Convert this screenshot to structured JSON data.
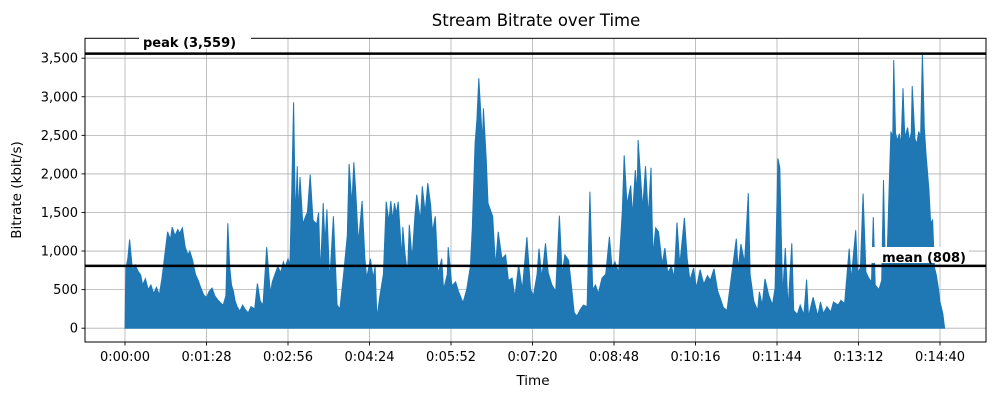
{
  "chart_data": {
    "type": "area",
    "title": "Stream Bitrate over Time",
    "xlabel": "Time",
    "ylabel": "Bitrate (kbit/s)",
    "series_name": "bitrate",
    "series_color": "#1f77b4",
    "grid": true,
    "grid_color": "#b0b0b0",
    "legend": "none",
    "xlim_seconds": [
      -44,
      930
    ],
    "ylim": [
      -178,
      3760
    ],
    "x_unit": "h:mm:ss",
    "y_unit": "kbit/s",
    "x_ticks": [
      {
        "t": 0,
        "label": "0:00:00"
      },
      {
        "t": 88,
        "label": "0:01:28"
      },
      {
        "t": 176,
        "label": "0:02:56"
      },
      {
        "t": 264,
        "label": "0:04:24"
      },
      {
        "t": 352,
        "label": "0:05:52"
      },
      {
        "t": 440,
        "label": "0:07:20"
      },
      {
        "t": 528,
        "label": "0:08:48"
      },
      {
        "t": 616,
        "label": "0:10:16"
      },
      {
        "t": 704,
        "label": "0:11:44"
      },
      {
        "t": 792,
        "label": "0:13:12"
      },
      {
        "t": 880,
        "label": "0:14:40"
      }
    ],
    "y_ticks": [
      {
        "v": 0,
        "label": "0"
      },
      {
        "v": 500,
        "label": "500"
      },
      {
        "v": 1000,
        "label": "1,000"
      },
      {
        "v": 1500,
        "label": "1,500"
      },
      {
        "v": 2000,
        "label": "2,000"
      },
      {
        "v": 2500,
        "label": "2,500"
      },
      {
        "v": 3000,
        "label": "3,000"
      },
      {
        "v": 3500,
        "label": "3,500"
      }
    ],
    "annotations": [
      {
        "name": "peak",
        "label": "peak (3,559)",
        "value": 3559,
        "line_color": "#000000"
      },
      {
        "name": "mean",
        "label": "mean (808)",
        "value": 808,
        "line_color": "#000000"
      }
    ],
    "points": [
      [
        0,
        0
      ],
      [
        1,
        780
      ],
      [
        3,
        900
      ],
      [
        5,
        1150
      ],
      [
        8,
        760
      ],
      [
        11,
        820
      ],
      [
        14,
        740
      ],
      [
        17,
        690
      ],
      [
        19,
        560
      ],
      [
        22,
        640
      ],
      [
        25,
        500
      ],
      [
        28,
        560
      ],
      [
        31,
        450
      ],
      [
        34,
        530
      ],
      [
        37,
        430
      ],
      [
        40,
        650
      ],
      [
        43,
        950
      ],
      [
        46,
        1250
      ],
      [
        49,
        1150
      ],
      [
        51,
        1310
      ],
      [
        54,
        1200
      ],
      [
        57,
        1280
      ],
      [
        59,
        1230
      ],
      [
        62,
        1300
      ],
      [
        65,
        1050
      ],
      [
        68,
        950
      ],
      [
        70,
        1000
      ],
      [
        73,
        880
      ],
      [
        76,
        700
      ],
      [
        79,
        620
      ],
      [
        82,
        520
      ],
      [
        85,
        430
      ],
      [
        88,
        400
      ],
      [
        91,
        480
      ],
      [
        94,
        520
      ],
      [
        97,
        420
      ],
      [
        100,
        370
      ],
      [
        103,
        330
      ],
      [
        106,
        300
      ],
      [
        109,
        420
      ],
      [
        111,
        1360
      ],
      [
        113,
        800
      ],
      [
        115,
        560
      ],
      [
        117,
        480
      ],
      [
        119,
        350
      ],
      [
        121,
        280
      ],
      [
        124,
        220
      ],
      [
        127,
        300
      ],
      [
        130,
        240
      ],
      [
        133,
        200
      ],
      [
        136,
        280
      ],
      [
        140,
        250
      ],
      [
        143,
        580
      ],
      [
        146,
        350
      ],
      [
        149,
        300
      ],
      [
        153,
        1050
      ],
      [
        157,
        450
      ],
      [
        159,
        600
      ],
      [
        165,
        800
      ],
      [
        168,
        720
      ],
      [
        171,
        860
      ],
      [
        173,
        790
      ],
      [
        176,
        900
      ],
      [
        178,
        820
      ],
      [
        180,
        1750
      ],
      [
        182,
        2930
      ],
      [
        184,
        1400
      ],
      [
        186,
        2100
      ],
      [
        187,
        1500
      ],
      [
        189,
        1960
      ],
      [
        192,
        1350
      ],
      [
        195,
        1450
      ],
      [
        197,
        1500
      ],
      [
        200,
        1990
      ],
      [
        203,
        1400
      ],
      [
        207,
        1350
      ],
      [
        209,
        1500
      ],
      [
        211,
        700
      ],
      [
        214,
        1620
      ],
      [
        216,
        1100
      ],
      [
        218,
        1540
      ],
      [
        221,
        600
      ],
      [
        225,
        1450
      ],
      [
        229,
        300
      ],
      [
        232,
        250
      ],
      [
        236,
        700
      ],
      [
        240,
        1200
      ],
      [
        242,
        2130
      ],
      [
        245,
        1600
      ],
      [
        247,
        2150
      ],
      [
        249,
        1800
      ],
      [
        252,
        1100
      ],
      [
        256,
        1650
      ],
      [
        259,
        900
      ],
      [
        261,
        650
      ],
      [
        265,
        900
      ],
      [
        268,
        650
      ],
      [
        270,
        800
      ],
      [
        272,
        130
      ],
      [
        275,
        400
      ],
      [
        279,
        700
      ],
      [
        282,
        1640
      ],
      [
        285,
        1380
      ],
      [
        287,
        1650
      ],
      [
        289,
        1400
      ],
      [
        291,
        1620
      ],
      [
        293,
        1480
      ],
      [
        295,
        1640
      ],
      [
        299,
        900
      ],
      [
        300,
        1310
      ],
      [
        302,
        1000
      ],
      [
        305,
        700
      ],
      [
        307,
        1340
      ],
      [
        310,
        900
      ],
      [
        313,
        1450
      ],
      [
        315,
        1730
      ],
      [
        319,
        1400
      ],
      [
        321,
        1840
      ],
      [
        324,
        1500
      ],
      [
        327,
        1880
      ],
      [
        330,
        1600
      ],
      [
        332,
        1250
      ],
      [
        335,
        1450
      ],
      [
        338,
        700
      ],
      [
        342,
        900
      ],
      [
        344,
        500
      ],
      [
        348,
        700
      ],
      [
        349,
        1050
      ],
      [
        353,
        550
      ],
      [
        357,
        600
      ],
      [
        360,
        480
      ],
      [
        365,
        330
      ],
      [
        369,
        500
      ],
      [
        373,
        800
      ],
      [
        375,
        1300
      ],
      [
        378,
        2400
      ],
      [
        380,
        2700
      ],
      [
        382,
        3240
      ],
      [
        386,
        2400
      ],
      [
        387,
        2850
      ],
      [
        390,
        2200
      ],
      [
        392,
        1620
      ],
      [
        397,
        1450
      ],
      [
        400,
        800
      ],
      [
        403,
        1250
      ],
      [
        407,
        900
      ],
      [
        411,
        950
      ],
      [
        414,
        620
      ],
      [
        418,
        650
      ],
      [
        421,
        400
      ],
      [
        425,
        820
      ],
      [
        429,
        500
      ],
      [
        434,
        1180
      ],
      [
        438,
        500
      ],
      [
        441,
        420
      ],
      [
        445,
        700
      ],
      [
        447,
        1030
      ],
      [
        450,
        650
      ],
      [
        454,
        1100
      ],
      [
        457,
        720
      ],
      [
        461,
        560
      ],
      [
        465,
        480
      ],
      [
        469,
        1460
      ],
      [
        472,
        700
      ],
      [
        475,
        950
      ],
      [
        479,
        880
      ],
      [
        482,
        550
      ],
      [
        485,
        200
      ],
      [
        488,
        160
      ],
      [
        492,
        250
      ],
      [
        495,
        300
      ],
      [
        499,
        280
      ],
      [
        502,
        1770
      ],
      [
        505,
        500
      ],
      [
        508,
        560
      ],
      [
        511,
        450
      ],
      [
        515,
        650
      ],
      [
        519,
        700
      ],
      [
        523,
        1185
      ],
      [
        526,
        780
      ],
      [
        529,
        860
      ],
      [
        533,
        720
      ],
      [
        537,
        1510
      ],
      [
        539,
        2240
      ],
      [
        542,
        1600
      ],
      [
        546,
        1850
      ],
      [
        548,
        1450
      ],
      [
        551,
        2050
      ],
      [
        553,
        1750
      ],
      [
        554,
        2440
      ],
      [
        559,
        1550
      ],
      [
        562,
        2100
      ],
      [
        565,
        1450
      ],
      [
        568,
        2080
      ],
      [
        570,
        950
      ],
      [
        573,
        1300
      ],
      [
        576,
        1250
      ],
      [
        580,
        830
      ],
      [
        583,
        1040
      ],
      [
        586,
        720
      ],
      [
        590,
        800
      ],
      [
        593,
        660
      ],
      [
        596,
        1370
      ],
      [
        599,
        820
      ],
      [
        604,
        1430
      ],
      [
        607,
        900
      ],
      [
        610,
        620
      ],
      [
        614,
        780
      ],
      [
        617,
        520
      ],
      [
        621,
        760
      ],
      [
        625,
        570
      ],
      [
        629,
        680
      ],
      [
        632,
        620
      ],
      [
        636,
        770
      ],
      [
        640,
        480
      ],
      [
        643,
        380
      ],
      [
        646,
        270
      ],
      [
        650,
        230
      ],
      [
        655,
        690
      ],
      [
        660,
        1160
      ],
      [
        662,
        760
      ],
      [
        665,
        1090
      ],
      [
        669,
        850
      ],
      [
        673,
        1750
      ],
      [
        675,
        700
      ],
      [
        679,
        350
      ],
      [
        683,
        230
      ],
      [
        685,
        470
      ],
      [
        688,
        300
      ],
      [
        691,
        640
      ],
      [
        695,
        430
      ],
      [
        699,
        300
      ],
      [
        702,
        520
      ],
      [
        705,
        2200
      ],
      [
        707,
        2080
      ],
      [
        710,
        420
      ],
      [
        713,
        1040
      ],
      [
        716,
        260
      ],
      [
        720,
        1100
      ],
      [
        722,
        230
      ],
      [
        726,
        180
      ],
      [
        729,
        300
      ],
      [
        733,
        170
      ],
      [
        736,
        630
      ],
      [
        738,
        150
      ],
      [
        743,
        400
      ],
      [
        748,
        160
      ],
      [
        751,
        340
      ],
      [
        754,
        190
      ],
      [
        758,
        280
      ],
      [
        762,
        210
      ],
      [
        765,
        340
      ],
      [
        770,
        300
      ],
      [
        773,
        360
      ],
      [
        777,
        320
      ],
      [
        782,
        1030
      ],
      [
        784,
        620
      ],
      [
        789,
        1270
      ],
      [
        791,
        720
      ],
      [
        794,
        780
      ],
      [
        797,
        1745
      ],
      [
        800,
        730
      ],
      [
        803,
        650
      ],
      [
        806,
        600
      ],
      [
        808,
        1440
      ],
      [
        810,
        560
      ],
      [
        814,
        500
      ],
      [
        817,
        620
      ],
      [
        819,
        1920
      ],
      [
        821,
        720
      ],
      [
        823,
        950
      ],
      [
        825,
        1800
      ],
      [
        827,
        2550
      ],
      [
        829,
        2480
      ],
      [
        830,
        3475
      ],
      [
        832,
        2530
      ],
      [
        834,
        2430
      ],
      [
        836,
        2520
      ],
      [
        838,
        2380
      ],
      [
        840,
        3110
      ],
      [
        842,
        2470
      ],
      [
        845,
        2600
      ],
      [
        847,
        2420
      ],
      [
        849,
        2540
      ],
      [
        850,
        3140
      ],
      [
        853,
        2450
      ],
      [
        855,
        2390
      ],
      [
        857,
        2550
      ],
      [
        859,
        2480
      ],
      [
        861,
        3559
      ],
      [
        863,
        2600
      ],
      [
        865,
        2240
      ],
      [
        868,
        1800
      ],
      [
        870,
        1350
      ],
      [
        872,
        1410
      ],
      [
        874,
        790
      ],
      [
        876,
        690
      ],
      [
        878,
        540
      ],
      [
        880,
        340
      ],
      [
        883,
        190
      ],
      [
        885,
        0
      ]
    ]
  }
}
